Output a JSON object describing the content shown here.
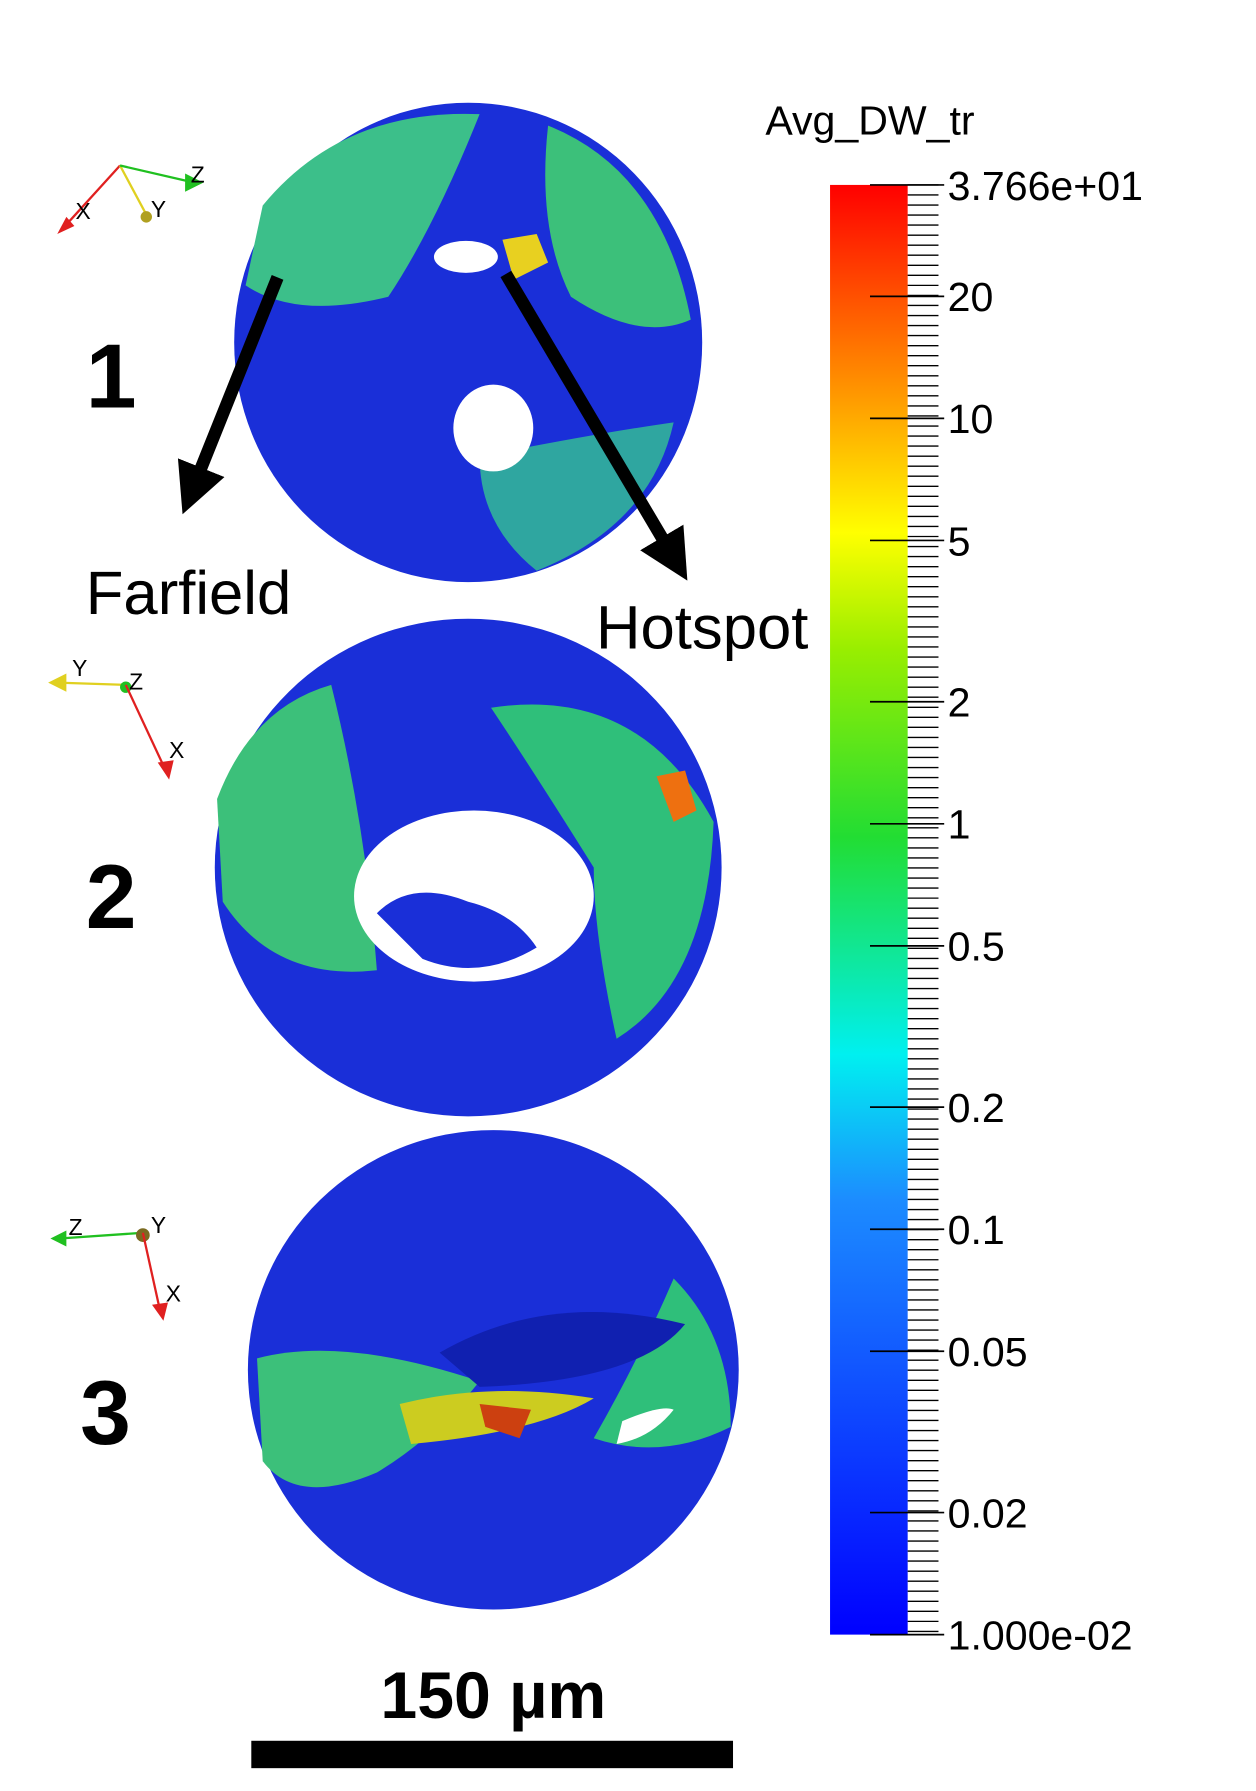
{
  "panels": [
    {
      "label": "1",
      "axes": {
        "x": "X",
        "y": "Y",
        "z": "Z"
      }
    },
    {
      "label": "2",
      "axes": {
        "x": "X",
        "y": "Y",
        "z": "Z"
      }
    },
    {
      "label": "3",
      "axes": {
        "x": "X",
        "y": "Y",
        "z": "Z"
      }
    }
  ],
  "annotations": {
    "farfield": "Farfield",
    "hotspot": "Hotspot"
  },
  "scale_bar": {
    "label": "150 µm"
  },
  "colorbar": {
    "title": "Avg_DW_tr",
    "log_scale": true,
    "range": [
      0.01,
      37.66
    ],
    "ticks": [
      {
        "value": 37.66,
        "label": "3.766e+01"
      },
      20,
      10,
      5,
      2,
      1,
      0.5,
      0.2,
      0.1,
      0.05,
      0.02,
      {
        "value": 0.01,
        "label": "1.000e-02"
      }
    ]
  }
}
